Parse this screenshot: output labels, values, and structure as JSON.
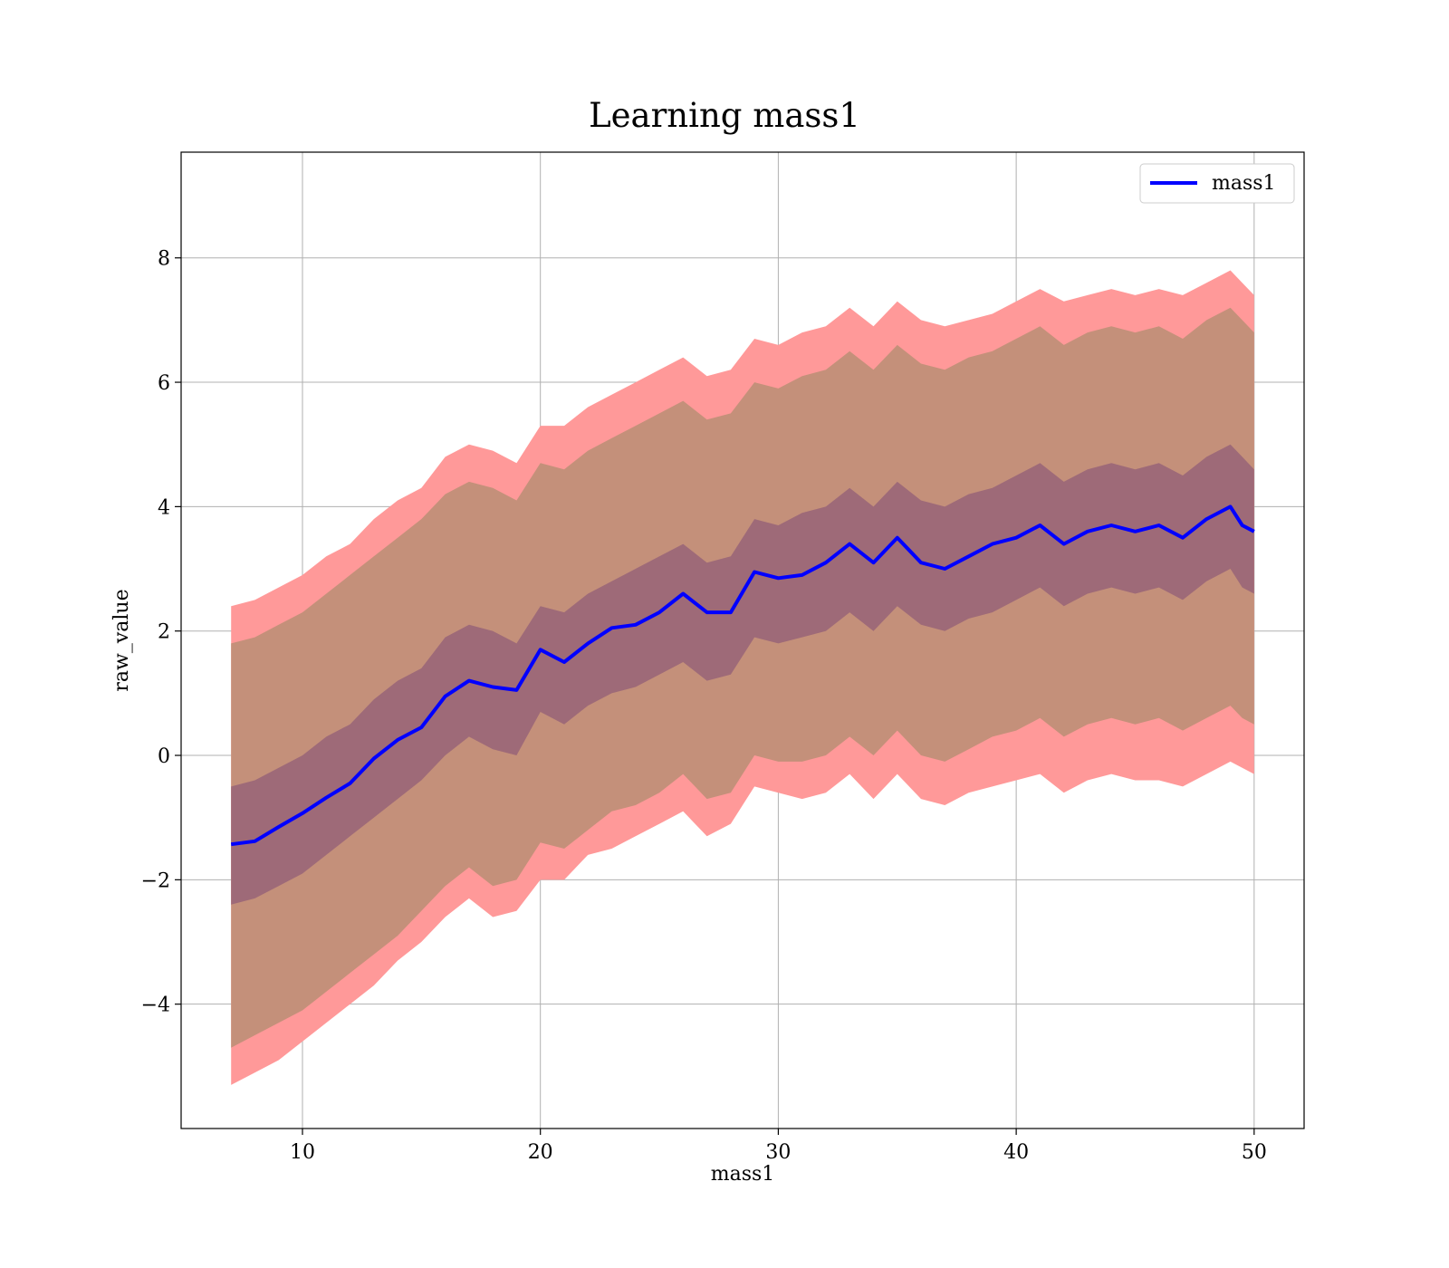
{
  "chart_data": {
    "type": "area",
    "title": "Learning mass1",
    "xlabel": "mass1",
    "ylabel": "raw_value",
    "xlim": [
      4.9,
      52.1
    ],
    "ylim": [
      -6.0,
      9.7
    ],
    "xticks": [
      10,
      20,
      30,
      40,
      50
    ],
    "yticks": [
      -4,
      -2,
      0,
      2,
      4,
      6,
      8
    ],
    "grid": true,
    "legend": {
      "position": "top-right",
      "entries": [
        "mass1"
      ]
    },
    "colors": {
      "line": "#0000ff",
      "band_outer": "#ff9999",
      "band_mid": "#c4907a",
      "band_inner": "#9e6a78",
      "grid": "#b0b0b0"
    },
    "series": [
      {
        "name": "mass1",
        "x": [
          7,
          8,
          9,
          10,
          11,
          12,
          13,
          14,
          15,
          16,
          17,
          18,
          19,
          20,
          21,
          22,
          23,
          24,
          25,
          26,
          27,
          28,
          29,
          30,
          31,
          32,
          33,
          34,
          35,
          36,
          37,
          38,
          39,
          40,
          41,
          42,
          43,
          44,
          45,
          46,
          47,
          48,
          49,
          49.5,
          50
        ],
        "y": [
          -1.43,
          -1.38,
          -1.15,
          -0.93,
          -0.68,
          -0.45,
          -0.05,
          0.25,
          0.45,
          0.95,
          1.2,
          1.1,
          1.05,
          1.7,
          1.5,
          1.8,
          2.05,
          2.1,
          2.3,
          2.6,
          2.3,
          2.3,
          2.95,
          2.85,
          2.9,
          3.1,
          3.4,
          3.1,
          3.5,
          3.1,
          3.0,
          3.2,
          3.4,
          3.5,
          3.7,
          3.4,
          3.6,
          3.7,
          3.6,
          3.7,
          3.5,
          3.8,
          4.0,
          3.7,
          3.6
        ]
      }
    ],
    "bands": [
      {
        "level": "outer",
        "lower": [
          -5.3,
          -5.1,
          -4.9,
          -4.6,
          -4.3,
          -4.0,
          -3.7,
          -3.3,
          -3.0,
          -2.6,
          -2.3,
          -2.6,
          -2.5,
          -2.0,
          -2.0,
          -1.6,
          -1.5,
          -1.3,
          -1.1,
          -0.9,
          -1.3,
          -1.1,
          -0.5,
          -0.6,
          -0.7,
          -0.6,
          -0.3,
          -0.7,
          -0.3,
          -0.7,
          -0.8,
          -0.6,
          -0.5,
          -0.4,
          -0.3,
          -0.6,
          -0.4,
          -0.3,
          -0.4,
          -0.4,
          -0.5,
          -0.3,
          -0.1,
          -0.2,
          -0.3
        ],
        "upper": [
          2.4,
          2.5,
          2.7,
          2.9,
          3.2,
          3.4,
          3.8,
          4.1,
          4.3,
          4.8,
          5.0,
          4.9,
          4.7,
          5.3,
          5.3,
          5.6,
          5.8,
          6.0,
          6.2,
          6.4,
          6.1,
          6.2,
          6.7,
          6.6,
          6.8,
          6.9,
          7.2,
          6.9,
          7.3,
          7.0,
          6.9,
          7.0,
          7.1,
          7.3,
          7.5,
          7.3,
          7.4,
          7.5,
          7.4,
          7.5,
          7.4,
          7.6,
          7.8,
          7.6,
          7.4
        ]
      },
      {
        "level": "mid",
        "lower": [
          -4.7,
          -4.5,
          -4.3,
          -4.1,
          -3.8,
          -3.5,
          -3.2,
          -2.9,
          -2.5,
          -2.1,
          -1.8,
          -2.1,
          -2.0,
          -1.4,
          -1.5,
          -1.2,
          -0.9,
          -0.8,
          -0.6,
          -0.3,
          -0.7,
          -0.6,
          0.0,
          -0.1,
          -0.1,
          0.0,
          0.3,
          0.0,
          0.4,
          0.0,
          -0.1,
          0.1,
          0.3,
          0.4,
          0.6,
          0.3,
          0.5,
          0.6,
          0.5,
          0.6,
          0.4,
          0.6,
          0.8,
          0.6,
          0.5
        ],
        "upper": [
          1.8,
          1.9,
          2.1,
          2.3,
          2.6,
          2.9,
          3.2,
          3.5,
          3.8,
          4.2,
          4.4,
          4.3,
          4.1,
          4.7,
          4.6,
          4.9,
          5.1,
          5.3,
          5.5,
          5.7,
          5.4,
          5.5,
          6.0,
          5.9,
          6.1,
          6.2,
          6.5,
          6.2,
          6.6,
          6.3,
          6.2,
          6.4,
          6.5,
          6.7,
          6.9,
          6.6,
          6.8,
          6.9,
          6.8,
          6.9,
          6.7,
          7.0,
          7.2,
          7.0,
          6.8
        ]
      },
      {
        "level": "inner",
        "lower": [
          -2.4,
          -2.3,
          -2.1,
          -1.9,
          -1.6,
          -1.3,
          -1.0,
          -0.7,
          -0.4,
          0.0,
          0.3,
          0.1,
          0.0,
          0.7,
          0.5,
          0.8,
          1.0,
          1.1,
          1.3,
          1.5,
          1.2,
          1.3,
          1.9,
          1.8,
          1.9,
          2.0,
          2.3,
          2.0,
          2.4,
          2.1,
          2.0,
          2.2,
          2.3,
          2.5,
          2.7,
          2.4,
          2.6,
          2.7,
          2.6,
          2.7,
          2.5,
          2.8,
          3.0,
          2.7,
          2.6
        ],
        "upper": [
          -0.5,
          -0.4,
          -0.2,
          0.0,
          0.3,
          0.5,
          0.9,
          1.2,
          1.4,
          1.9,
          2.1,
          2.0,
          1.8,
          2.4,
          2.3,
          2.6,
          2.8,
          3.0,
          3.2,
          3.4,
          3.1,
          3.2,
          3.8,
          3.7,
          3.9,
          4.0,
          4.3,
          4.0,
          4.4,
          4.1,
          4.0,
          4.2,
          4.3,
          4.5,
          4.7,
          4.4,
          4.6,
          4.7,
          4.6,
          4.7,
          4.5,
          4.8,
          5.0,
          4.8,
          4.6
        ]
      }
    ]
  }
}
